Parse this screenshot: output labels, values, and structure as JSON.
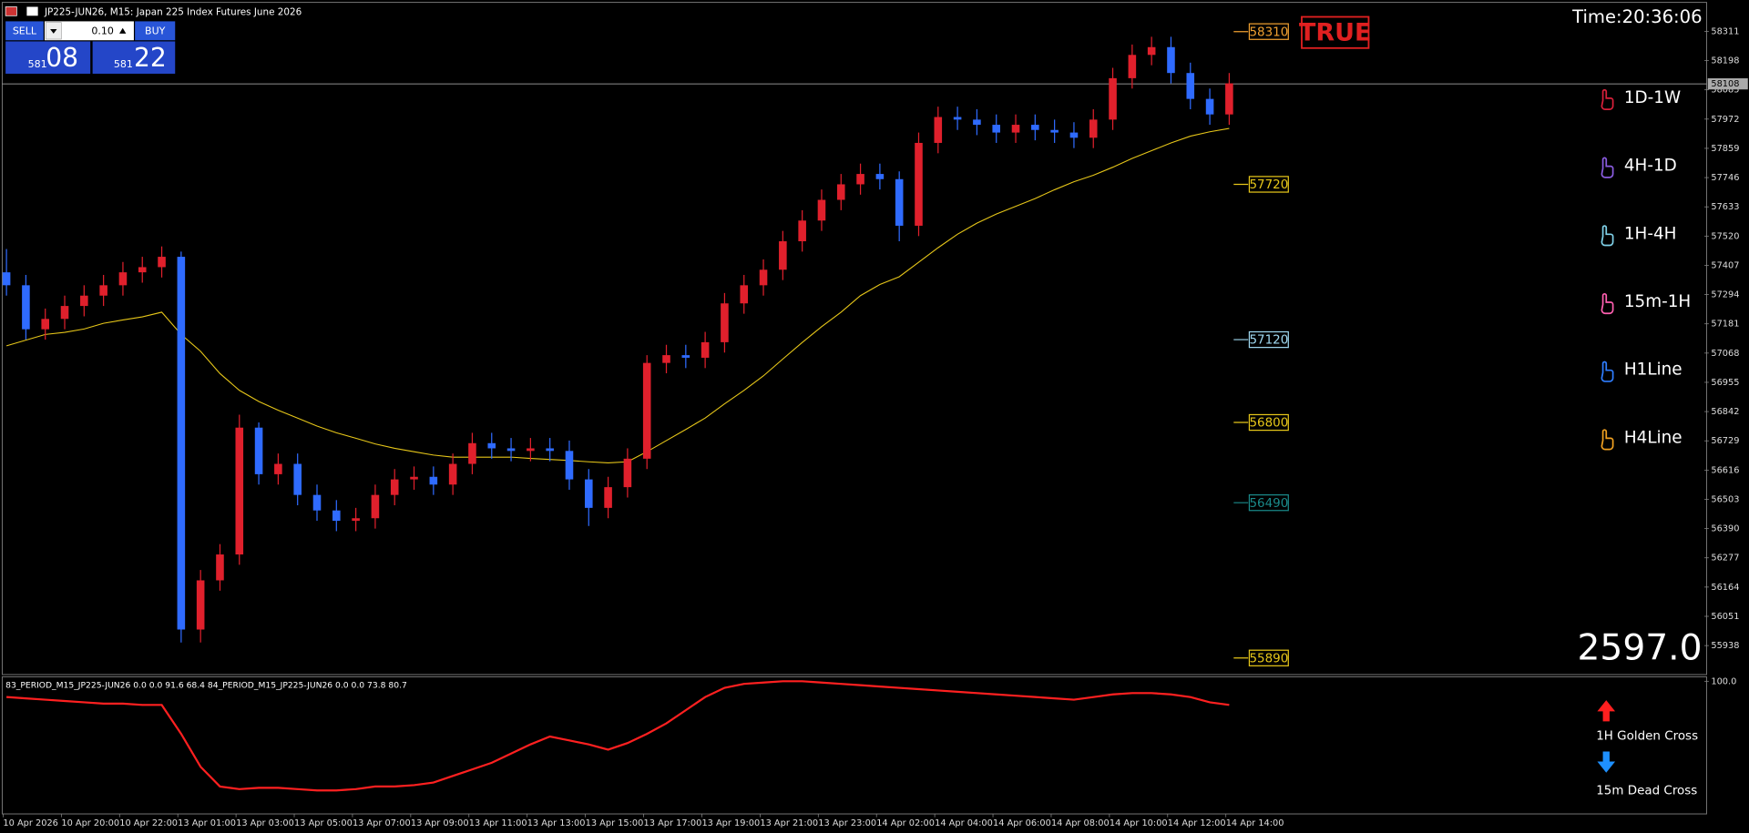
{
  "window": {
    "title": "JP225-JUN26, M15:  Japan 225 Index Futures June 2026",
    "time": "Time:20:36:06",
    "status": "TRUE",
    "big_value": "2597.0"
  },
  "trade_panel": {
    "sell": "SELL",
    "buy": "BUY",
    "lot": "0.10",
    "bid_prefix": "581",
    "bid": "08",
    "ask_prefix": "581",
    "ask": "22"
  },
  "signals": [
    {
      "label": "1D-1W",
      "color": "#d8203a"
    },
    {
      "label": "4H-1D",
      "color": "#8a5ce0"
    },
    {
      "label": "1H-4H",
      "color": "#7fd0e8"
    },
    {
      "label": "15m-1H",
      "color": "#ff5fb0"
    },
    {
      "label": "H1Line",
      "color": "#2f7dff"
    },
    {
      "label": "H4Line",
      "color": "#f0a020"
    }
  ],
  "crosses": [
    {
      "label": "1H Golden Cross",
      "color": "#ff1f1f"
    },
    {
      "label": "15m Dead Cross",
      "color": "#1e90ff"
    }
  ],
  "chart_data": [
    {
      "type": "candlestick",
      "categories": [
        "10 Apr 2026",
        null,
        null,
        "10 Apr 20:00",
        null,
        null,
        "10 Apr 22:00",
        null,
        null,
        "13 Apr 01:00",
        null,
        null,
        "13 Apr 03:00",
        null,
        null,
        "13 Apr 05:00",
        null,
        null,
        "13 Apr 07:00",
        null,
        null,
        "13 Apr 09:00",
        null,
        null,
        "13 Apr 11:00",
        null,
        null,
        "13 Apr 13:00",
        null,
        null,
        "13 Apr 15:00",
        null,
        null,
        "13 Apr 17:00",
        null,
        null,
        "13 Apr 19:00",
        null,
        null,
        "13 Apr 21:00",
        null,
        null,
        "13 Apr 23:00",
        null,
        null,
        "14 Apr 02:00",
        null,
        null,
        "14 Apr 04:00",
        null,
        null,
        "14 Apr 06:00",
        null,
        null,
        "14 Apr 08:00",
        null,
        null,
        "14 Apr 10:00",
        null,
        null,
        "14 Apr 12:00",
        null,
        null,
        "14 Apr 14:00"
      ],
      "open": [
        57380,
        57330,
        57160,
        57200,
        57250,
        57290,
        57330,
        57380,
        57400,
        57440,
        56000,
        56190,
        56290,
        56780,
        56600,
        56640,
        56520,
        56460,
        56420,
        56430,
        56520,
        56580,
        56590,
        56560,
        56640,
        56720,
        56700,
        56690,
        56700,
        56690,
        56580,
        56470,
        56550,
        56660,
        57030,
        57060,
        57050,
        57110,
        57260,
        57330,
        57390,
        57500,
        57580,
        57660,
        57720,
        57760,
        57740,
        57560,
        57880,
        57980,
        57970,
        57950,
        57920,
        57950,
        57930,
        57920,
        57900,
        57970,
        58130,
        58220,
        58250,
        58150,
        58050,
        57990
      ],
      "high": [
        57470,
        57370,
        57240,
        57290,
        57330,
        57370,
        57420,
        57440,
        57480,
        57460,
        56230,
        56330,
        56830,
        56800,
        56680,
        56680,
        56560,
        56500,
        56470,
        56560,
        56620,
        56630,
        56630,
        56680,
        56760,
        56760,
        56740,
        56740,
        56740,
        56730,
        56620,
        56590,
        56700,
        57060,
        57100,
        57100,
        57150,
        57300,
        57370,
        57430,
        57540,
        57620,
        57700,
        57760,
        57800,
        57800,
        57770,
        57920,
        58020,
        58020,
        58010,
        57990,
        57990,
        57990,
        57970,
        57960,
        58010,
        58170,
        58260,
        58290,
        58290,
        58190,
        58090,
        58150
      ],
      "low": [
        57290,
        57120,
        57120,
        57160,
        57210,
        57250,
        57290,
        57340,
        57360,
        55950,
        55950,
        56150,
        56250,
        56560,
        56560,
        56480,
        56420,
        56380,
        56380,
        56390,
        56480,
        56540,
        56520,
        56520,
        56600,
        56660,
        56650,
        56650,
        56650,
        56540,
        56400,
        56430,
        56510,
        56620,
        56990,
        57010,
        57010,
        57070,
        57220,
        57290,
        57350,
        57460,
        57540,
        57620,
        57680,
        57700,
        57500,
        57520,
        57840,
        57930,
        57910,
        57880,
        57880,
        57890,
        57880,
        57860,
        57860,
        57930,
        58090,
        58180,
        58110,
        58010,
        57950,
        57950
      ],
      "close": [
        57330,
        57160,
        57200,
        57250,
        57290,
        57330,
        57380,
        57400,
        57440,
        56000,
        56190,
        56290,
        56780,
        56600,
        56640,
        56520,
        56460,
        56420,
        56430,
        56520,
        56580,
        56590,
        56560,
        56640,
        56720,
        56700,
        56690,
        56700,
        56690,
        56580,
        56470,
        56550,
        56660,
        57030,
        57060,
        57050,
        57110,
        57260,
        57330,
        57390,
        57500,
        57580,
        57660,
        57720,
        57760,
        57740,
        57560,
        57880,
        57980,
        57970,
        57950,
        57920,
        57950,
        57930,
        57920,
        57900,
        57970,
        58130,
        58220,
        58250,
        58150,
        58050,
        57990,
        58110
      ],
      "up_color": "#e0202c",
      "down_color": "#2f6bff",
      "moving_average": {
        "color": "#e6c619",
        "values": [
          57096,
          57118,
          57140,
          57148,
          57161,
          57183,
          57196,
          57208,
          57226,
          57140,
          57075,
          56989,
          56924,
          56881,
          56847,
          56817,
          56786,
          56760,
          56739,
          56717,
          56700,
          56687,
          56674,
          56666,
          56666,
          56666,
          56666,
          56661,
          56657,
          56653,
          56648,
          56644,
          56648,
          56687,
          56730,
          56773,
          56817,
          56872,
          56924,
          56980,
          57045,
          57109,
          57170,
          57226,
          57290,
          57333,
          57363,
          57419,
          57475,
          57527,
          57570,
          57605,
          57635,
          57665,
          57699,
          57730,
          57755,
          57786,
          57820,
          57850,
          57880,
          57906,
          57923,
          57936
        ]
      },
      "ylim": [
        55826,
        58410
      ],
      "yticks": [
        58311,
        58198,
        58085,
        57972,
        57859,
        57746,
        57633,
        57520,
        57407,
        57294,
        57181,
        57068,
        56955,
        56842,
        56729,
        56616,
        56503,
        56390,
        56277,
        56164,
        56051,
        55938
      ],
      "current_price": 58108,
      "levels": [
        {
          "value": 58310,
          "color": "#f0a030"
        },
        {
          "value": 57720,
          "color": "#e6c619"
        },
        {
          "value": 57120,
          "color": "#9fd8f0"
        },
        {
          "value": 56800,
          "color": "#e6c619"
        },
        {
          "value": 56490,
          "color": "#1a8a8a"
        },
        {
          "value": 55890,
          "color": "#e6c619"
        }
      ]
    },
    {
      "type": "line",
      "title": "83_PERIOD_M15_JP225-JUN26 0.0 0.0 91.6 68.4 84_PERIOD_M15_JP225-JUN26 0.0 0.0 73.8 80.7",
      "values": [
        88,
        87,
        86,
        85,
        84,
        83,
        83,
        82,
        82,
        60,
        35,
        20,
        18,
        19,
        19,
        18,
        17,
        17,
        18,
        20,
        20,
        21,
        23,
        28,
        33,
        38,
        45,
        52,
        58,
        55,
        52,
        48,
        53,
        60,
        68,
        78,
        88,
        95,
        98,
        99,
        100,
        100,
        99,
        98,
        97,
        96,
        95,
        94,
        93,
        92,
        91,
        90,
        89,
        88,
        87,
        86,
        88,
        90,
        91,
        91,
        90,
        88,
        84,
        82
      ],
      "color": "#ff2020",
      "ylim": [
        0,
        100
      ],
      "yticks": [
        {
          "value": 100,
          "label": "100.0"
        }
      ]
    }
  ]
}
